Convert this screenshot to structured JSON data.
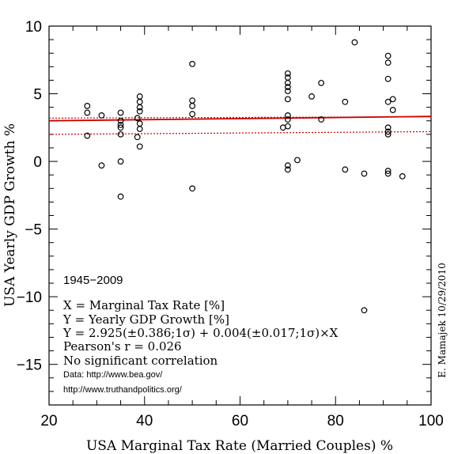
{
  "chart_data": {
    "type": "scatter",
    "xlabel": "USA Marginal Tax Rate (Married Couples) %",
    "ylabel": "USA Yearly GDP Growth %",
    "xlim": [
      20,
      100
    ],
    "ylim": [
      -18,
      10
    ],
    "xticks": [
      20,
      40,
      60,
      80,
      100
    ],
    "yticks": [
      -15,
      -10,
      -5,
      0,
      5,
      10
    ],
    "xtick_labels": [
      "20",
      "40",
      "60",
      "80",
      "100"
    ],
    "ytick_labels": [
      "−15",
      "−10",
      "−5",
      "0",
      "5",
      "10"
    ],
    "grid": false,
    "fit": {
      "intercept": 2.925,
      "slope": 0.004,
      "band_at_x": [
        20,
        100
      ],
      "band_upper": [
        3.2,
        3.3
      ],
      "band_lower": [
        2.0,
        2.2
      ],
      "line_color": "#cc0000"
    },
    "points": [
      {
        "x": 28,
        "y": 4.1
      },
      {
        "x": 28,
        "y": 3.6
      },
      {
        "x": 28,
        "y": 1.9
      },
      {
        "x": 31,
        "y": 3.4
      },
      {
        "x": 31,
        "y": -0.3
      },
      {
        "x": 35,
        "y": 3.6
      },
      {
        "x": 35,
        "y": 3.0
      },
      {
        "x": 35,
        "y": 2.7
      },
      {
        "x": 35,
        "y": 2.5
      },
      {
        "x": 35,
        "y": 2.0
      },
      {
        "x": 35,
        "y": 0.0
      },
      {
        "x": 35,
        "y": -2.6
      },
      {
        "x": 38.5,
        "y": 3.2
      },
      {
        "x": 38.5,
        "y": 1.8
      },
      {
        "x": 39,
        "y": 4.8
      },
      {
        "x": 39,
        "y": 4.4
      },
      {
        "x": 39,
        "y": 4.0
      },
      {
        "x": 39,
        "y": 3.7
      },
      {
        "x": 39,
        "y": 2.8
      },
      {
        "x": 39,
        "y": 2.4
      },
      {
        "x": 39,
        "y": 1.1
      },
      {
        "x": 50,
        "y": 7.2
      },
      {
        "x": 50,
        "y": 4.5
      },
      {
        "x": 50,
        "y": 4.1
      },
      {
        "x": 50,
        "y": 3.5
      },
      {
        "x": 50,
        "y": -2.0
      },
      {
        "x": 69,
        "y": 2.5
      },
      {
        "x": 70,
        "y": 6.5
      },
      {
        "x": 70,
        "y": 6.2
      },
      {
        "x": 70,
        "y": 5.8
      },
      {
        "x": 70,
        "y": 5.5
      },
      {
        "x": 70,
        "y": 5.2
      },
      {
        "x": 70,
        "y": 4.6
      },
      {
        "x": 70,
        "y": 3.4
      },
      {
        "x": 70,
        "y": 3.1
      },
      {
        "x": 70,
        "y": 2.6
      },
      {
        "x": 70,
        "y": -0.3
      },
      {
        "x": 70,
        "y": -0.6
      },
      {
        "x": 72,
        "y": 0.1
      },
      {
        "x": 75,
        "y": 4.8
      },
      {
        "x": 77,
        "y": 5.8
      },
      {
        "x": 77,
        "y": 3.1
      },
      {
        "x": 82,
        "y": 4.4
      },
      {
        "x": 82,
        "y": -0.6
      },
      {
        "x": 84,
        "y": 8.8
      },
      {
        "x": 86,
        "y": -0.9
      },
      {
        "x": 86,
        "y": -11.0
      },
      {
        "x": 91,
        "y": 7.8
      },
      {
        "x": 91,
        "y": 7.3
      },
      {
        "x": 91,
        "y": 6.1
      },
      {
        "x": 91,
        "y": 4.4
      },
      {
        "x": 91,
        "y": 2.5
      },
      {
        "x": 91,
        "y": 2.2
      },
      {
        "x": 91,
        "y": 2.0
      },
      {
        "x": 91,
        "y": -0.7
      },
      {
        "x": 91,
        "y": -0.9
      },
      {
        "x": 92,
        "y": 4.6
      },
      {
        "x": 92,
        "y": 3.8
      },
      {
        "x": 94,
        "y": -1.1
      }
    ],
    "annotations": {
      "years": "1945−2009",
      "line1": "X = Marginal Tax Rate [%]",
      "line2": "Y = Yearly GDP Growth [%]",
      "line3": "Y = 2.925(±0.386;1σ) + 0.004(±0.017;1σ)×X",
      "line4": "Pearson's r = 0.026",
      "line5": "No significant correlation",
      "source1": "Data:  http://www.bea.gov/",
      "source2": "http://www.truthandpolitics.org/"
    },
    "credit": "E. Mamajek 10/29/2010"
  }
}
